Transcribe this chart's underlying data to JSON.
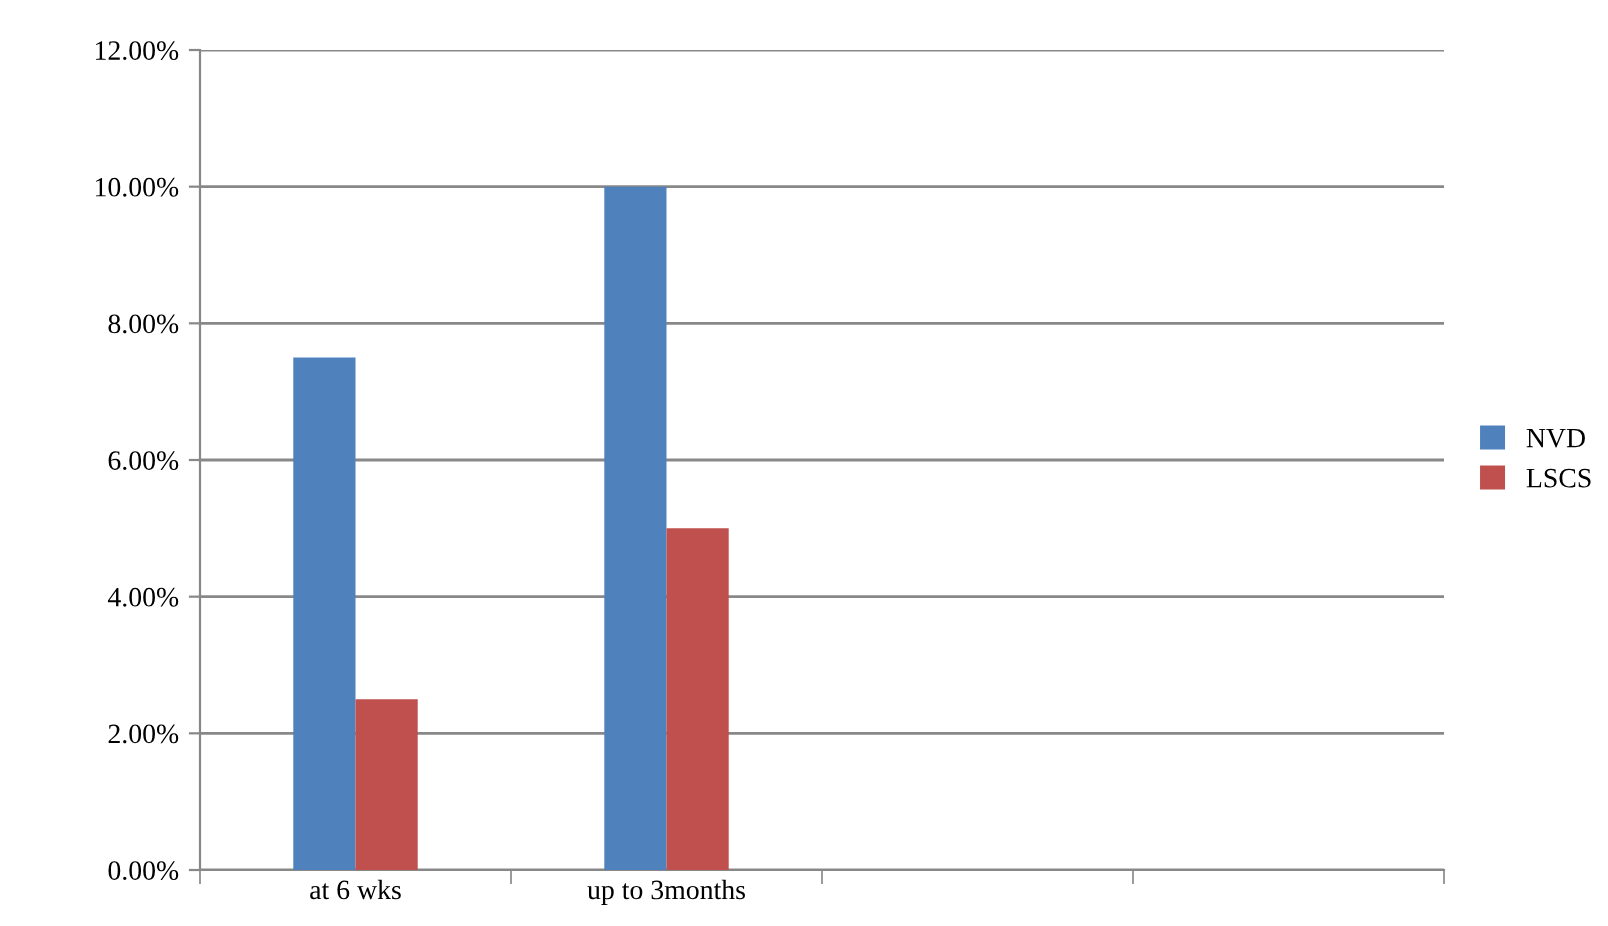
{
  "chart_data": {
    "type": "bar",
    "categories": [
      "at 6 wks",
      "up to 3months",
      null,
      null
    ],
    "series": [
      {
        "name": "NVD",
        "color": "#4f81bd",
        "values": [
          7.5,
          10,
          null,
          null
        ]
      },
      {
        "name": "LSCS",
        "color": "#c0504d",
        "values": [
          2.5,
          5,
          null,
          null
        ]
      }
    ],
    "ylim": [
      0,
      12
    ],
    "yticks": [
      {
        "value": 0,
        "label": "0.00%"
      },
      {
        "value": 2,
        "label": "2.00%"
      },
      {
        "value": 4,
        "label": "4.00%"
      },
      {
        "value": 6,
        "label": "6.00%"
      },
      {
        "value": 8,
        "label": "8.00%"
      },
      {
        "value": 10,
        "label": "10.00%"
      },
      {
        "value": 12,
        "label": "12.00%"
      }
    ],
    "grid": "y",
    "legend": "right"
  }
}
